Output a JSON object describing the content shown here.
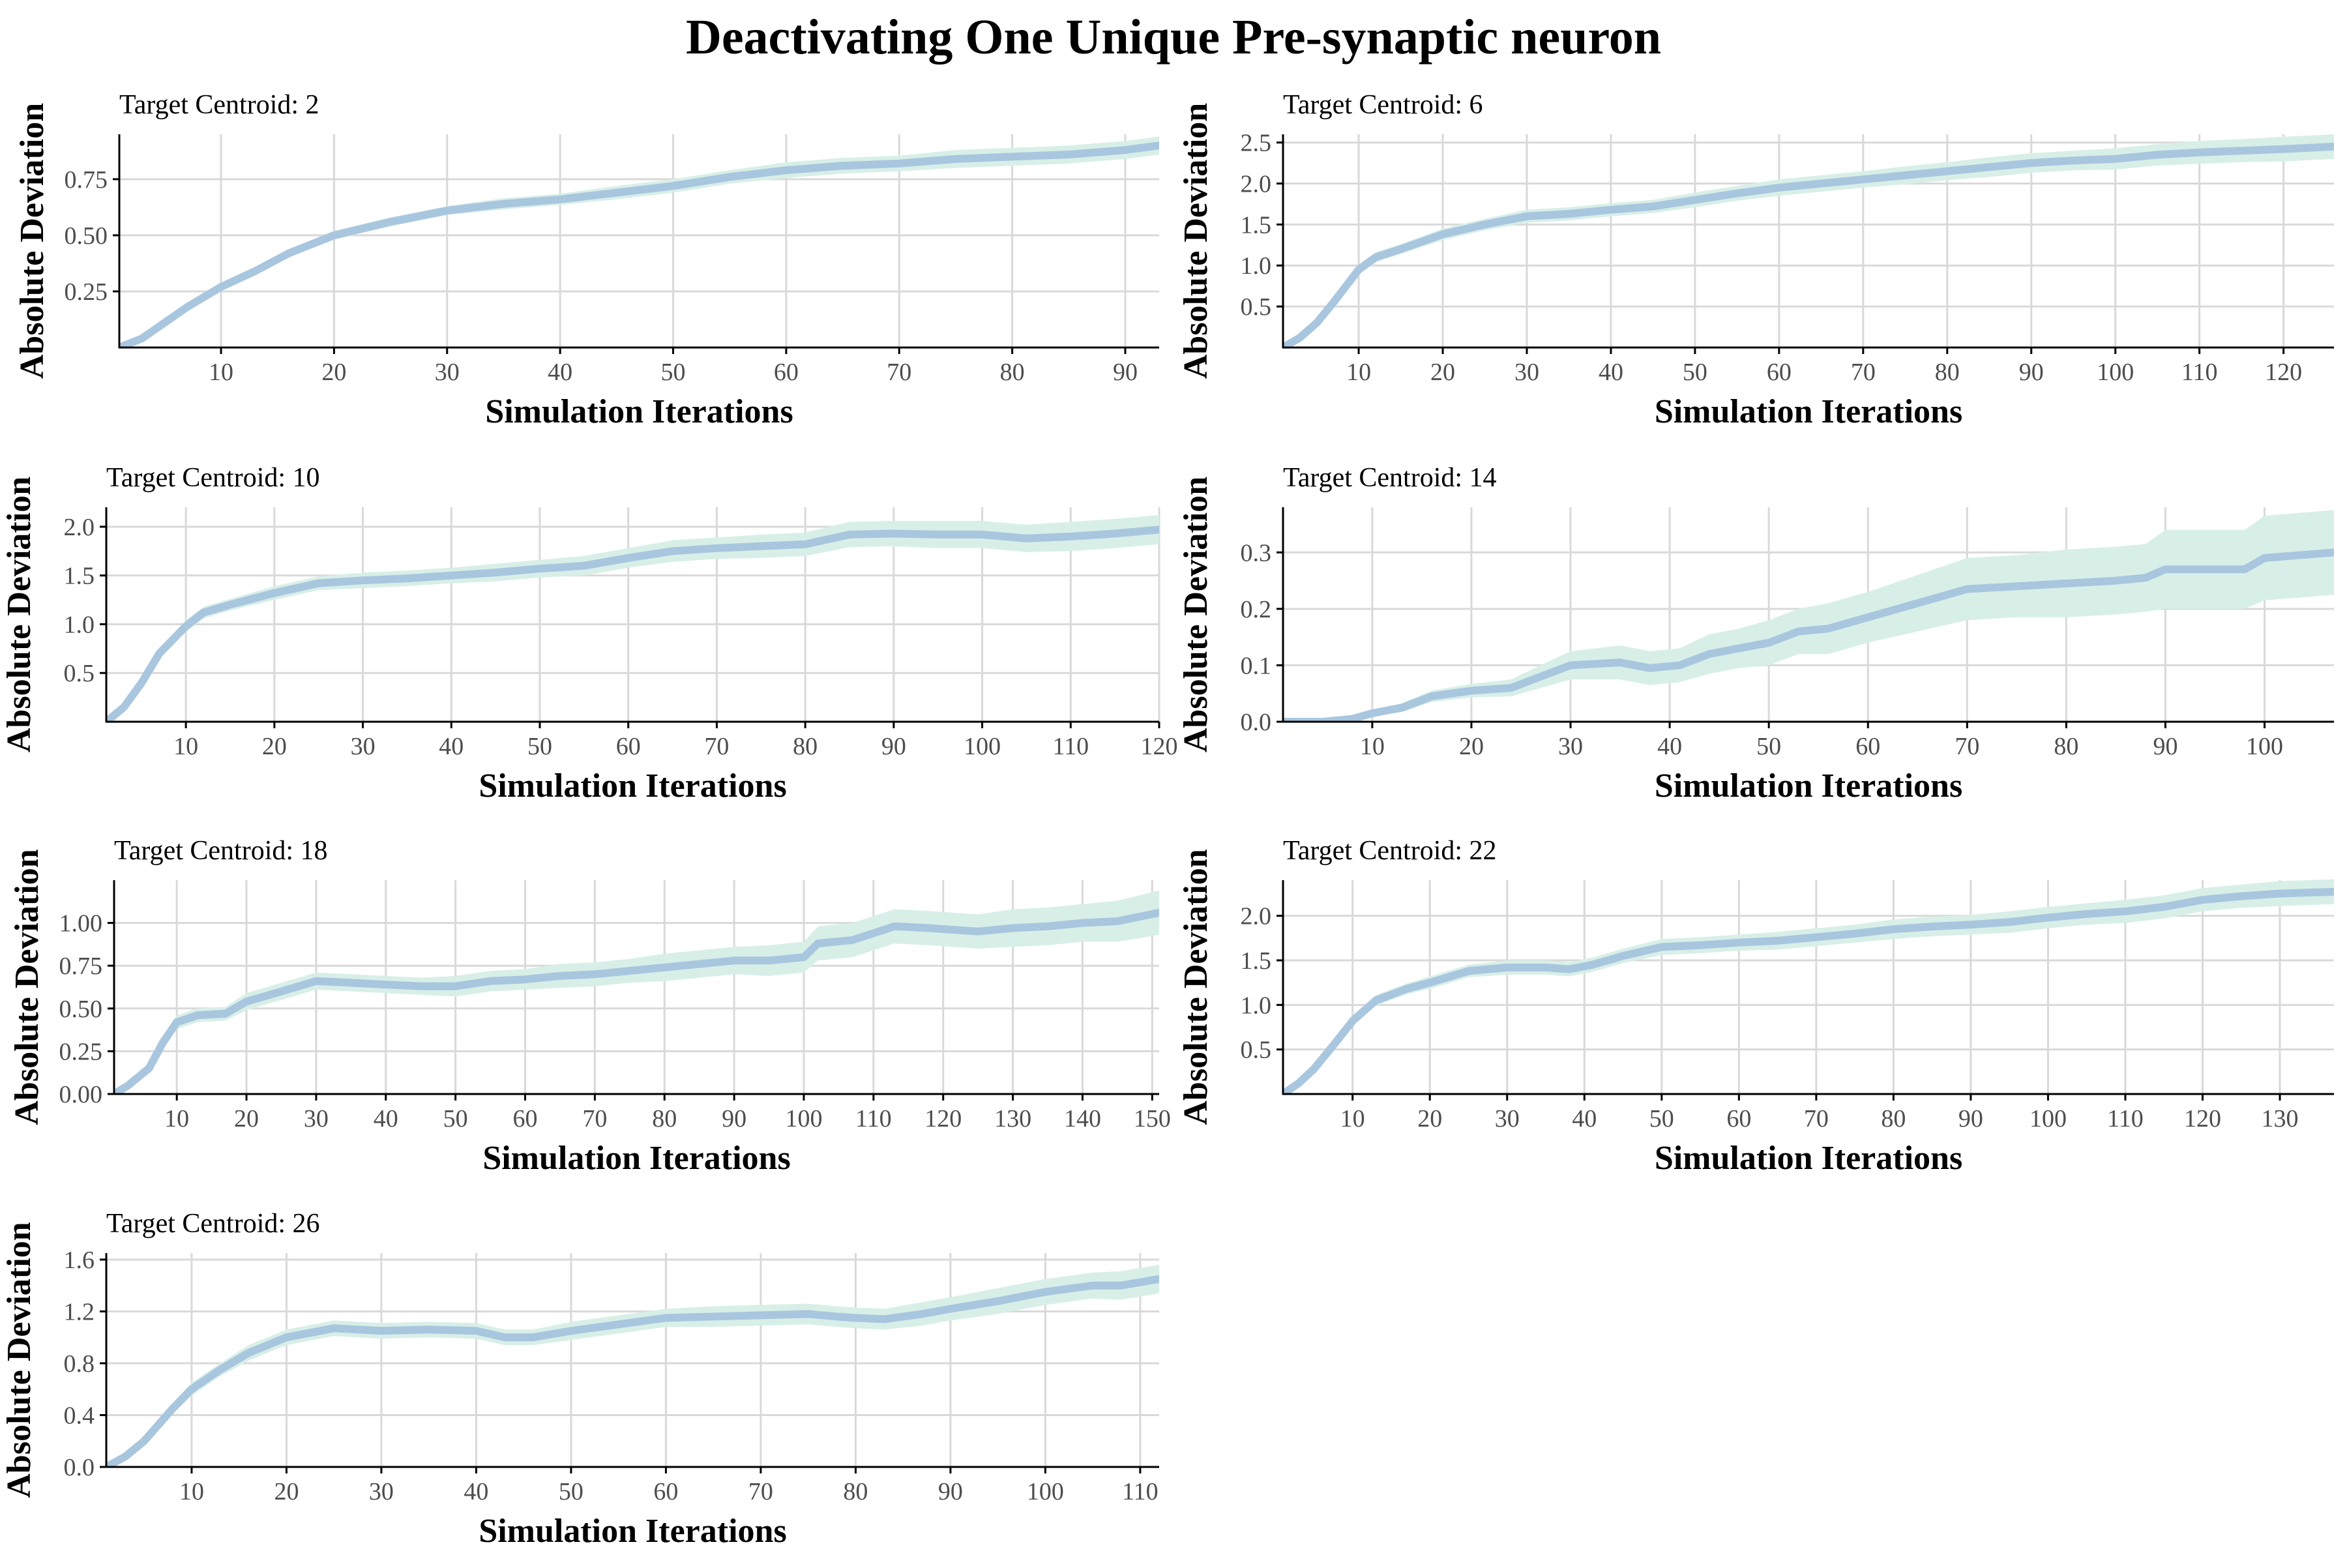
{
  "figure": {
    "title": "Deactivating One Unique Pre-synaptic neuron",
    "band_color": "#d8efe8",
    "line_color": "#a9c6df",
    "grid_color": "#d9d9d9",
    "axis_color": "#000000",
    "tick_label_color": "#4d4d4d"
  },
  "chart_data": [
    {
      "type": "line",
      "title": "Target Centroid: 2",
      "xlabel": "Simulation Iterations",
      "ylabel": "Absolute Deviation",
      "xlim": [
        1,
        93
      ],
      "ylim": [
        0,
        0.95
      ],
      "xticks": [
        10,
        20,
        30,
        40,
        50,
        60,
        70,
        80,
        90
      ],
      "yticks": [
        0.25,
        0.5,
        0.75
      ],
      "ytick_labels": [
        "0.25",
        "0.50",
        "0.75"
      ],
      "grid": true,
      "x": [
        1,
        3,
        5,
        7,
        10,
        13,
        16,
        20,
        25,
        30,
        35,
        40,
        45,
        50,
        55,
        60,
        65,
        70,
        75,
        80,
        85,
        90,
        93
      ],
      "y": [
        0.0,
        0.04,
        0.11,
        0.18,
        0.27,
        0.34,
        0.42,
        0.5,
        0.56,
        0.61,
        0.64,
        0.66,
        0.69,
        0.72,
        0.76,
        0.79,
        0.81,
        0.82,
        0.84,
        0.85,
        0.86,
        0.88,
        0.9
      ],
      "band": [
        0.01,
        0.01,
        0.01,
        0.01,
        0.01,
        0.01,
        0.015,
        0.02,
        0.02,
        0.02,
        0.025,
        0.025,
        0.03,
        0.03,
        0.03,
        0.035,
        0.035,
        0.035,
        0.04,
        0.04,
        0.04,
        0.04,
        0.04
      ]
    },
    {
      "type": "line",
      "title": "Target Centroid: 6",
      "xlabel": "Simulation Iterations",
      "ylabel": "Absolute Deviation",
      "xlim": [
        1,
        126
      ],
      "ylim": [
        0,
        2.6
      ],
      "xticks": [
        10,
        20,
        30,
        40,
        50,
        60,
        70,
        80,
        90,
        100,
        110,
        120
      ],
      "yticks": [
        0.5,
        1.0,
        1.5,
        2.0,
        2.5
      ],
      "ytick_labels": [
        "0.5",
        "1.0",
        "1.5",
        "2.0",
        "2.5"
      ],
      "grid": true,
      "x": [
        1,
        3,
        5,
        7,
        10,
        12,
        15,
        20,
        25,
        30,
        35,
        40,
        45,
        50,
        55,
        60,
        65,
        70,
        75,
        80,
        85,
        90,
        95,
        100,
        105,
        110,
        115,
        120,
        126
      ],
      "y": [
        0.0,
        0.12,
        0.3,
        0.55,
        0.95,
        1.1,
        1.2,
        1.38,
        1.5,
        1.6,
        1.63,
        1.68,
        1.72,
        1.8,
        1.88,
        1.95,
        2.0,
        2.05,
        2.1,
        2.15,
        2.2,
        2.25,
        2.28,
        2.3,
        2.35,
        2.38,
        2.4,
        2.42,
        2.45
      ],
      "band": [
        0.02,
        0.03,
        0.04,
        0.05,
        0.06,
        0.06,
        0.06,
        0.07,
        0.07,
        0.08,
        0.08,
        0.08,
        0.08,
        0.09,
        0.09,
        0.1,
        0.1,
        0.1,
        0.11,
        0.11,
        0.12,
        0.12,
        0.12,
        0.13,
        0.13,
        0.14,
        0.14,
        0.15,
        0.15
      ]
    },
    {
      "type": "line",
      "title": "Target Centroid: 10",
      "xlabel": "Simulation Iterations",
      "ylabel": "Absolute Deviation",
      "xlim": [
        1,
        120
      ],
      "ylim": [
        0,
        2.2
      ],
      "xticks": [
        10,
        20,
        30,
        40,
        50,
        60,
        70,
        80,
        90,
        100,
        110,
        120
      ],
      "yticks": [
        0.5,
        1.0,
        1.5,
        2.0
      ],
      "ytick_labels": [
        "0.5",
        "1.0",
        "1.5",
        "2.0"
      ],
      "grid": true,
      "x": [
        1,
        3,
        5,
        7,
        10,
        12,
        15,
        20,
        25,
        30,
        35,
        40,
        45,
        50,
        55,
        60,
        65,
        70,
        75,
        80,
        85,
        90,
        95,
        100,
        105,
        110,
        115,
        120
      ],
      "y": [
        0.0,
        0.15,
        0.4,
        0.7,
        0.98,
        1.12,
        1.2,
        1.32,
        1.42,
        1.45,
        1.47,
        1.5,
        1.53,
        1.57,
        1.6,
        1.68,
        1.75,
        1.78,
        1.8,
        1.82,
        1.92,
        1.93,
        1.92,
        1.92,
        1.88,
        1.9,
        1.93,
        1.97
      ],
      "band": [
        0.02,
        0.03,
        0.04,
        0.05,
        0.06,
        0.06,
        0.06,
        0.07,
        0.07,
        0.08,
        0.08,
        0.08,
        0.09,
        0.09,
        0.1,
        0.1,
        0.11,
        0.11,
        0.12,
        0.12,
        0.13,
        0.13,
        0.14,
        0.14,
        0.14,
        0.15,
        0.15,
        0.15
      ]
    },
    {
      "type": "line",
      "title": "Target Centroid: 14",
      "xlabel": "Simulation Iterations",
      "ylabel": "Absolute Deviation",
      "xlim": [
        1,
        107
      ],
      "ylim": [
        0,
        0.38
      ],
      "xticks": [
        10,
        20,
        30,
        40,
        50,
        60,
        70,
        80,
        90,
        100
      ],
      "yticks": [
        0.0,
        0.1,
        0.2,
        0.3
      ],
      "ytick_labels": [
        "0.0",
        "0.1",
        "0.2",
        "0.3"
      ],
      "grid": true,
      "x": [
        1,
        5,
        8,
        10,
        13,
        16,
        20,
        24,
        27,
        30,
        35,
        38,
        41,
        44,
        47,
        50,
        53,
        56,
        60,
        65,
        70,
        75,
        80,
        85,
        88,
        90,
        95,
        98,
        100,
        107
      ],
      "y": [
        0.0,
        0.0,
        0.005,
        0.015,
        0.025,
        0.045,
        0.055,
        0.06,
        0.08,
        0.1,
        0.105,
        0.095,
        0.1,
        0.12,
        0.13,
        0.14,
        0.16,
        0.165,
        0.185,
        0.21,
        0.235,
        0.24,
        0.245,
        0.25,
        0.255,
        0.27,
        0.27,
        0.27,
        0.29,
        0.3
      ],
      "band": [
        0.0,
        0.0,
        0.003,
        0.005,
        0.008,
        0.01,
        0.012,
        0.015,
        0.02,
        0.025,
        0.03,
        0.03,
        0.03,
        0.035,
        0.035,
        0.04,
        0.04,
        0.045,
        0.045,
        0.05,
        0.055,
        0.055,
        0.06,
        0.06,
        0.06,
        0.07,
        0.07,
        0.07,
        0.075,
        0.075
      ]
    },
    {
      "type": "line",
      "title": "Target Centroid: 18",
      "xlabel": "Simulation Iterations",
      "ylabel": "Absolute Deviation",
      "xlim": [
        1,
        151
      ],
      "ylim": [
        0,
        1.25
      ],
      "xticks": [
        10,
        20,
        30,
        40,
        50,
        60,
        70,
        80,
        90,
        100,
        110,
        120,
        130,
        140,
        150
      ],
      "yticks": [
        0.0,
        0.25,
        0.5,
        0.75,
        1.0
      ],
      "ytick_labels": [
        "0.00",
        "0.25",
        "0.50",
        "0.75",
        "1.00"
      ],
      "grid": true,
      "x": [
        1,
        3,
        6,
        8,
        10,
        13,
        17,
        20,
        25,
        30,
        35,
        40,
        45,
        50,
        55,
        60,
        65,
        70,
        75,
        80,
        85,
        90,
        95,
        100,
        102,
        107,
        113,
        118,
        125,
        130,
        135,
        140,
        145,
        151
      ],
      "y": [
        0.0,
        0.05,
        0.15,
        0.3,
        0.42,
        0.46,
        0.47,
        0.54,
        0.6,
        0.66,
        0.65,
        0.64,
        0.63,
        0.63,
        0.66,
        0.67,
        0.69,
        0.7,
        0.72,
        0.74,
        0.76,
        0.78,
        0.78,
        0.8,
        0.88,
        0.9,
        0.98,
        0.97,
        0.95,
        0.97,
        0.98,
        1.0,
        1.01,
        1.06
      ],
      "band": [
        0.01,
        0.02,
        0.03,
        0.04,
        0.04,
        0.04,
        0.04,
        0.05,
        0.05,
        0.05,
        0.05,
        0.05,
        0.05,
        0.06,
        0.06,
        0.06,
        0.07,
        0.07,
        0.07,
        0.08,
        0.08,
        0.08,
        0.09,
        0.09,
        0.1,
        0.1,
        0.1,
        0.1,
        0.1,
        0.11,
        0.11,
        0.11,
        0.12,
        0.13
      ]
    },
    {
      "type": "line",
      "title": "Target Centroid: 22",
      "xlabel": "Simulation Iterations",
      "ylabel": "Absolute Deviation",
      "xlim": [
        1,
        137
      ],
      "ylim": [
        0,
        2.4
      ],
      "xticks": [
        10,
        20,
        30,
        40,
        50,
        60,
        70,
        80,
        90,
        100,
        110,
        120,
        130
      ],
      "yticks": [
        0.5,
        1.0,
        1.5,
        2.0
      ],
      "ytick_labels": [
        "0.5",
        "1.0",
        "1.5",
        "2.0"
      ],
      "grid": true,
      "x": [
        1,
        3,
        5,
        8,
        10,
        13,
        17,
        20,
        25,
        30,
        35,
        38,
        41,
        45,
        50,
        55,
        60,
        65,
        70,
        75,
        80,
        85,
        90,
        95,
        100,
        105,
        110,
        115,
        120,
        125,
        130,
        137
      ],
      "y": [
        0.0,
        0.12,
        0.28,
        0.6,
        0.82,
        1.05,
        1.18,
        1.25,
        1.38,
        1.42,
        1.42,
        1.4,
        1.45,
        1.55,
        1.65,
        1.67,
        1.7,
        1.72,
        1.76,
        1.8,
        1.85,
        1.88,
        1.9,
        1.93,
        1.98,
        2.02,
        2.05,
        2.1,
        2.18,
        2.22,
        2.25,
        2.27
      ],
      "band": [
        0.02,
        0.03,
        0.04,
        0.05,
        0.05,
        0.06,
        0.06,
        0.07,
        0.07,
        0.08,
        0.08,
        0.08,
        0.08,
        0.08,
        0.09,
        0.09,
        0.09,
        0.1,
        0.1,
        0.1,
        0.11,
        0.11,
        0.11,
        0.12,
        0.12,
        0.12,
        0.13,
        0.13,
        0.13,
        0.13,
        0.14,
        0.14
      ]
    },
    {
      "type": "line",
      "title": "Target Centroid: 26",
      "xlabel": "Simulation Iterations",
      "ylabel": "Absolute Deviation",
      "xlim": [
        1,
        112
      ],
      "ylim": [
        0,
        1.65
      ],
      "xticks": [
        10,
        20,
        30,
        40,
        50,
        60,
        70,
        80,
        90,
        100,
        110
      ],
      "yticks": [
        0.0,
        0.4,
        0.8,
        1.2,
        1.6
      ],
      "ytick_labels": [
        "0.0",
        "0.4",
        "0.8",
        "1.2",
        "1.6"
      ],
      "grid": true,
      "x": [
        1,
        3,
        5,
        8,
        10,
        13,
        16,
        20,
        25,
        30,
        35,
        40,
        43,
        46,
        50,
        55,
        60,
        65,
        70,
        75,
        78,
        80,
        83,
        87,
        90,
        95,
        100,
        105,
        108,
        112
      ],
      "y": [
        0.0,
        0.08,
        0.2,
        0.45,
        0.6,
        0.75,
        0.88,
        1.0,
        1.07,
        1.05,
        1.06,
        1.05,
        1.0,
        1.0,
        1.05,
        1.1,
        1.15,
        1.16,
        1.17,
        1.18,
        1.16,
        1.15,
        1.14,
        1.18,
        1.22,
        1.28,
        1.35,
        1.4,
        1.4,
        1.45
      ],
      "band": [
        0.01,
        0.02,
        0.03,
        0.04,
        0.05,
        0.05,
        0.06,
        0.06,
        0.06,
        0.06,
        0.06,
        0.06,
        0.06,
        0.06,
        0.07,
        0.07,
        0.07,
        0.08,
        0.08,
        0.08,
        0.08,
        0.08,
        0.08,
        0.09,
        0.09,
        0.1,
        0.1,
        0.1,
        0.11,
        0.11
      ]
    }
  ]
}
